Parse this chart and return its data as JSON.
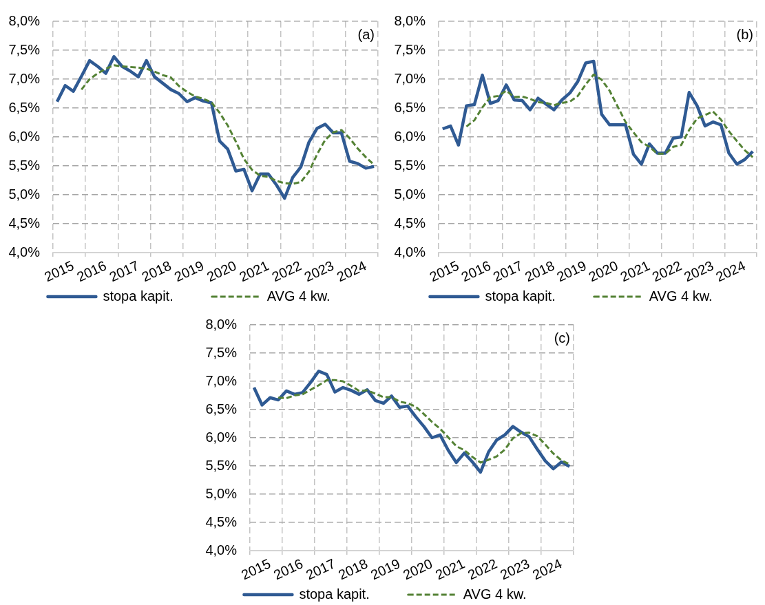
{
  "chart_data": [
    {
      "type": "line",
      "categories": [
        null,
        null,
        "2015",
        null,
        null,
        null,
        "2016",
        null,
        null,
        null,
        "2017",
        null,
        null,
        null,
        "2018",
        null,
        null,
        null,
        "2019",
        null,
        null,
        null,
        "2020",
        null,
        null,
        null,
        "2021",
        null,
        null,
        null,
        "2022",
        null,
        null,
        null,
        "2023",
        null,
        null,
        null,
        "2024",
        null
      ],
      "series": [
        {
          "name": "stopa kapit.",
          "color": "#2f5a93",
          "line_style": "solid",
          "values": [
            6.61,
            6.89,
            6.79,
            7.05,
            7.32,
            7.22,
            7.1,
            7.39,
            7.22,
            7.14,
            7.04,
            7.32,
            7.04,
            6.93,
            6.82,
            6.75,
            6.61,
            6.68,
            6.62,
            6.59,
            5.93,
            5.79,
            5.41,
            5.44,
            5.07,
            5.36,
            5.36,
            5.17,
            4.94,
            5.3,
            5.48,
            5.91,
            6.15,
            6.22,
            6.07,
            6.07,
            5.58,
            5.54,
            5.46,
            5.49
          ]
        },
        {
          "name": "AVG 4 kw.",
          "color": "#548235",
          "line_style": "dashed",
          "values": [
            null,
            null,
            null,
            6.82,
            7.0,
            7.1,
            7.18,
            7.24,
            7.22,
            7.21,
            7.2,
            7.18,
            7.13,
            7.07,
            7.03,
            6.88,
            6.78,
            6.7,
            6.66,
            6.6,
            6.42,
            6.2,
            5.92,
            5.62,
            5.43,
            5.33,
            5.31,
            5.24,
            5.2,
            5.19,
            5.22,
            5.4,
            5.7,
            5.95,
            6.08,
            6.12,
            5.98,
            5.8,
            5.65,
            5.52
          ]
        }
      ],
      "ylim": [
        4,
        8
      ],
      "yticks": [
        {
          "value": 4,
          "label": "4,0%"
        },
        {
          "value": 4.5,
          "label": "4,5%"
        },
        {
          "value": 5,
          "label": "5,0%"
        },
        {
          "value": 5.5,
          "label": "5,5%"
        },
        {
          "value": 6,
          "label": "6,0%"
        },
        {
          "value": 6.5,
          "label": "6,5%"
        },
        {
          "value": 7,
          "label": "7,0%"
        },
        {
          "value": 7.5,
          "label": "7,5%"
        },
        {
          "value": 8,
          "label": "8,0%"
        }
      ],
      "grid": true,
      "legend": "bottom",
      "annotations": [
        "(a)"
      ]
    },
    {
      "type": "line",
      "categories": [
        null,
        null,
        "2015",
        null,
        null,
        null,
        "2016",
        null,
        null,
        null,
        "2017",
        null,
        null,
        null,
        "2018",
        null,
        null,
        null,
        "2019",
        null,
        null,
        null,
        "2020",
        null,
        null,
        null,
        "2021",
        null,
        null,
        null,
        "2022",
        null,
        null,
        null,
        "2023",
        null,
        null,
        null,
        "2024",
        null
      ],
      "series": [
        {
          "name": "stopa kapit.",
          "color": "#2f5a93",
          "line_style": "solid",
          "values": [
            6.14,
            6.19,
            5.86,
            6.54,
            6.56,
            7.07,
            6.58,
            6.63,
            6.9,
            6.64,
            6.63,
            6.47,
            6.67,
            6.57,
            6.47,
            6.64,
            6.76,
            6.96,
            7.28,
            7.31,
            6.39,
            6.21,
            6.21,
            6.21,
            5.7,
            5.53,
            5.88,
            5.72,
            5.72,
            5.98,
            6.0,
            6.77,
            6.54,
            6.19,
            6.26,
            6.21,
            5.72,
            5.53,
            5.61,
            5.75
          ]
        },
        {
          "name": "AVG 4 kw.",
          "color": "#548235",
          "line_style": "dashed",
          "values": [
            null,
            null,
            null,
            6.18,
            6.29,
            6.51,
            6.69,
            6.71,
            6.8,
            6.69,
            6.7,
            6.66,
            6.6,
            6.59,
            6.55,
            6.59,
            6.61,
            6.71,
            6.91,
            7.08,
            6.99,
            6.8,
            6.53,
            6.26,
            6.08,
            5.91,
            5.83,
            5.71,
            5.71,
            5.83,
            5.86,
            6.12,
            6.32,
            6.38,
            6.44,
            6.3,
            6.1,
            5.93,
            5.77,
            5.65
          ]
        }
      ],
      "ylim": [
        4,
        8
      ],
      "yticks": [
        {
          "value": 4,
          "label": "4,0%"
        },
        {
          "value": 4.5,
          "label": "4,5%"
        },
        {
          "value": 5,
          "label": "5,0%"
        },
        {
          "value": 5.5,
          "label": "5,5%"
        },
        {
          "value": 6,
          "label": "6,0%"
        },
        {
          "value": 6.5,
          "label": "6,5%"
        },
        {
          "value": 7,
          "label": "7,0%"
        },
        {
          "value": 7.5,
          "label": "7,5%"
        },
        {
          "value": 8,
          "label": "8,0%"
        }
      ],
      "grid": true,
      "legend": "bottom",
      "annotations": [
        "(b)"
      ]
    },
    {
      "type": "line",
      "categories": [
        null,
        null,
        "2015",
        null,
        null,
        null,
        "2016",
        null,
        null,
        null,
        "2017",
        null,
        null,
        null,
        "2018",
        null,
        null,
        null,
        "2019",
        null,
        null,
        null,
        "2020",
        null,
        null,
        null,
        "2021",
        null,
        null,
        null,
        "2022",
        null,
        null,
        null,
        "2023",
        null,
        null,
        null,
        "2024",
        null
      ],
      "series": [
        {
          "name": "stopa kapit.",
          "color": "#2f5a93",
          "line_style": "solid",
          "values": [
            6.89,
            6.58,
            6.71,
            6.67,
            6.83,
            6.77,
            6.8,
            6.98,
            7.18,
            7.12,
            6.81,
            6.89,
            6.84,
            6.77,
            6.85,
            6.66,
            6.61,
            6.74,
            6.54,
            6.56,
            6.37,
            6.2,
            6.0,
            6.05,
            5.78,
            5.56,
            5.73,
            5.57,
            5.39,
            5.75,
            5.96,
            6.05,
            6.2,
            6.1,
            6.02,
            5.8,
            5.59,
            5.45,
            5.57,
            5.49
          ]
        },
        {
          "name": "AVG 4 kw.",
          "color": "#548235",
          "line_style": "dashed",
          "values": [
            null,
            null,
            null,
            6.71,
            6.7,
            6.75,
            6.77,
            6.85,
            6.93,
            7.02,
            7.02,
            7.0,
            6.92,
            6.83,
            6.84,
            6.78,
            6.72,
            6.72,
            6.64,
            6.61,
            6.55,
            6.42,
            6.28,
            6.16,
            6.01,
            5.85,
            5.78,
            5.66,
            5.56,
            5.61,
            5.67,
            5.79,
            5.99,
            6.08,
            6.09,
            6.03,
            5.88,
            5.72,
            5.6,
            5.53
          ]
        }
      ],
      "ylim": [
        4,
        8
      ],
      "yticks": [
        {
          "value": 4,
          "label": "4,0%"
        },
        {
          "value": 4.5,
          "label": "4,5%"
        },
        {
          "value": 5,
          "label": "5,0%"
        },
        {
          "value": 5.5,
          "label": "5,5%"
        },
        {
          "value": 6,
          "label": "6,0%"
        },
        {
          "value": 6.5,
          "label": "6,5%"
        },
        {
          "value": 7,
          "label": "7,0%"
        },
        {
          "value": 7.5,
          "label": "7,5%"
        },
        {
          "value": 8,
          "label": "8,0%"
        }
      ],
      "grid": true,
      "legend": "bottom",
      "annotations": [
        "(c)"
      ]
    }
  ]
}
